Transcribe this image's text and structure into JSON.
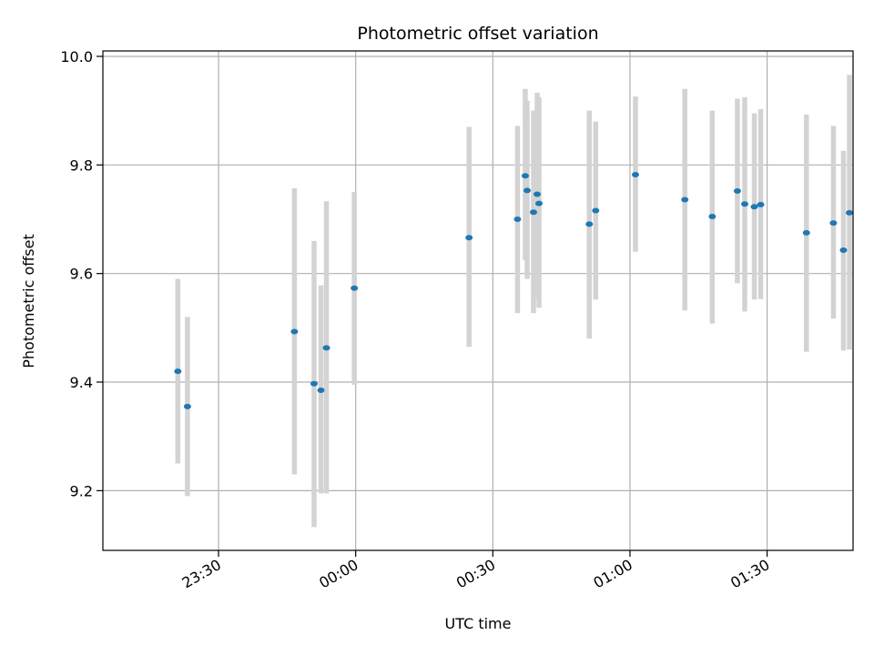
{
  "chart_data": {
    "type": "scatter",
    "title": "Photometric offset variation",
    "xlabel": "UTC time",
    "ylabel": "Photometric offset",
    "x_unit": "minutes relative to 00:00 UTC",
    "xlim": [
      -55.3,
      108.8
    ],
    "ylim": [
      9.09,
      10.01
    ],
    "xticks": [
      {
        "value": -30,
        "label": "23:30"
      },
      {
        "value": 0,
        "label": "00:00"
      },
      {
        "value": 30,
        "label": "00:30"
      },
      {
        "value": 60,
        "label": "01:00"
      },
      {
        "value": 90,
        "label": "01:30"
      }
    ],
    "yticks": [
      {
        "value": 9.2,
        "label": "9.2"
      },
      {
        "value": 9.4,
        "label": "9.4"
      },
      {
        "value": 9.6,
        "label": "9.6"
      },
      {
        "value": 9.8,
        "label": "9.8"
      },
      {
        "value": 10.0,
        "label": "10.0"
      }
    ],
    "grid": true,
    "colors": {
      "marker": "#1f77b4",
      "errorbar": "#d3d3d3",
      "grid": "#b0b0b0",
      "axis": "#000000"
    },
    "points": [
      {
        "x": -38.9,
        "y": 9.42,
        "lo": 9.25,
        "hi": 9.59
      },
      {
        "x": -36.8,
        "y": 9.355,
        "lo": 9.19,
        "hi": 9.52
      },
      {
        "x": -13.4,
        "y": 9.493,
        "lo": 9.23,
        "hi": 9.757
      },
      {
        "x": -9.1,
        "y": 9.397,
        "lo": 9.133,
        "hi": 9.66
      },
      {
        "x": -7.6,
        "y": 9.385,
        "lo": 9.195,
        "hi": 9.578
      },
      {
        "x": -6.4,
        "y": 9.463,
        "lo": 9.195,
        "hi": 9.733
      },
      {
        "x": -0.3,
        "y": 9.573,
        "lo": 9.395,
        "hi": 9.75
      },
      {
        "x": 24.8,
        "y": 9.666,
        "lo": 9.465,
        "hi": 9.87
      },
      {
        "x": 35.4,
        "y": 9.7,
        "lo": 9.527,
        "hi": 9.872
      },
      {
        "x": 37.1,
        "y": 9.78,
        "lo": 9.625,
        "hi": 9.94
      },
      {
        "x": 37.5,
        "y": 9.753,
        "lo": 9.59,
        "hi": 9.918
      },
      {
        "x": 38.9,
        "y": 9.713,
        "lo": 9.527,
        "hi": 9.9
      },
      {
        "x": 39.7,
        "y": 9.746,
        "lo": 9.555,
        "hi": 9.933
      },
      {
        "x": 40.1,
        "y": 9.729,
        "lo": 9.537,
        "hi": 9.925
      },
      {
        "x": 51.1,
        "y": 9.691,
        "lo": 9.48,
        "hi": 9.9
      },
      {
        "x": 52.5,
        "y": 9.716,
        "lo": 9.552,
        "hi": 9.88
      },
      {
        "x": 61.2,
        "y": 9.782,
        "lo": 9.64,
        "hi": 9.926
      },
      {
        "x": 72.0,
        "y": 9.736,
        "lo": 9.532,
        "hi": 9.94
      },
      {
        "x": 78.0,
        "y": 9.705,
        "lo": 9.508,
        "hi": 9.9
      },
      {
        "x": 83.5,
        "y": 9.752,
        "lo": 9.582,
        "hi": 9.922
      },
      {
        "x": 85.1,
        "y": 9.728,
        "lo": 9.53,
        "hi": 9.925
      },
      {
        "x": 87.2,
        "y": 9.723,
        "lo": 9.552,
        "hi": 9.895
      },
      {
        "x": 88.6,
        "y": 9.727,
        "lo": 9.553,
        "hi": 9.903
      },
      {
        "x": 98.6,
        "y": 9.675,
        "lo": 9.456,
        "hi": 9.893
      },
      {
        "x": 104.5,
        "y": 9.693,
        "lo": 9.517,
        "hi": 9.872
      },
      {
        "x": 106.7,
        "y": 9.643,
        "lo": 9.458,
        "hi": 9.826
      },
      {
        "x": 110.6,
        "y": 9.712,
        "lo": 9.46,
        "hi": 9.966
      }
    ]
  }
}
